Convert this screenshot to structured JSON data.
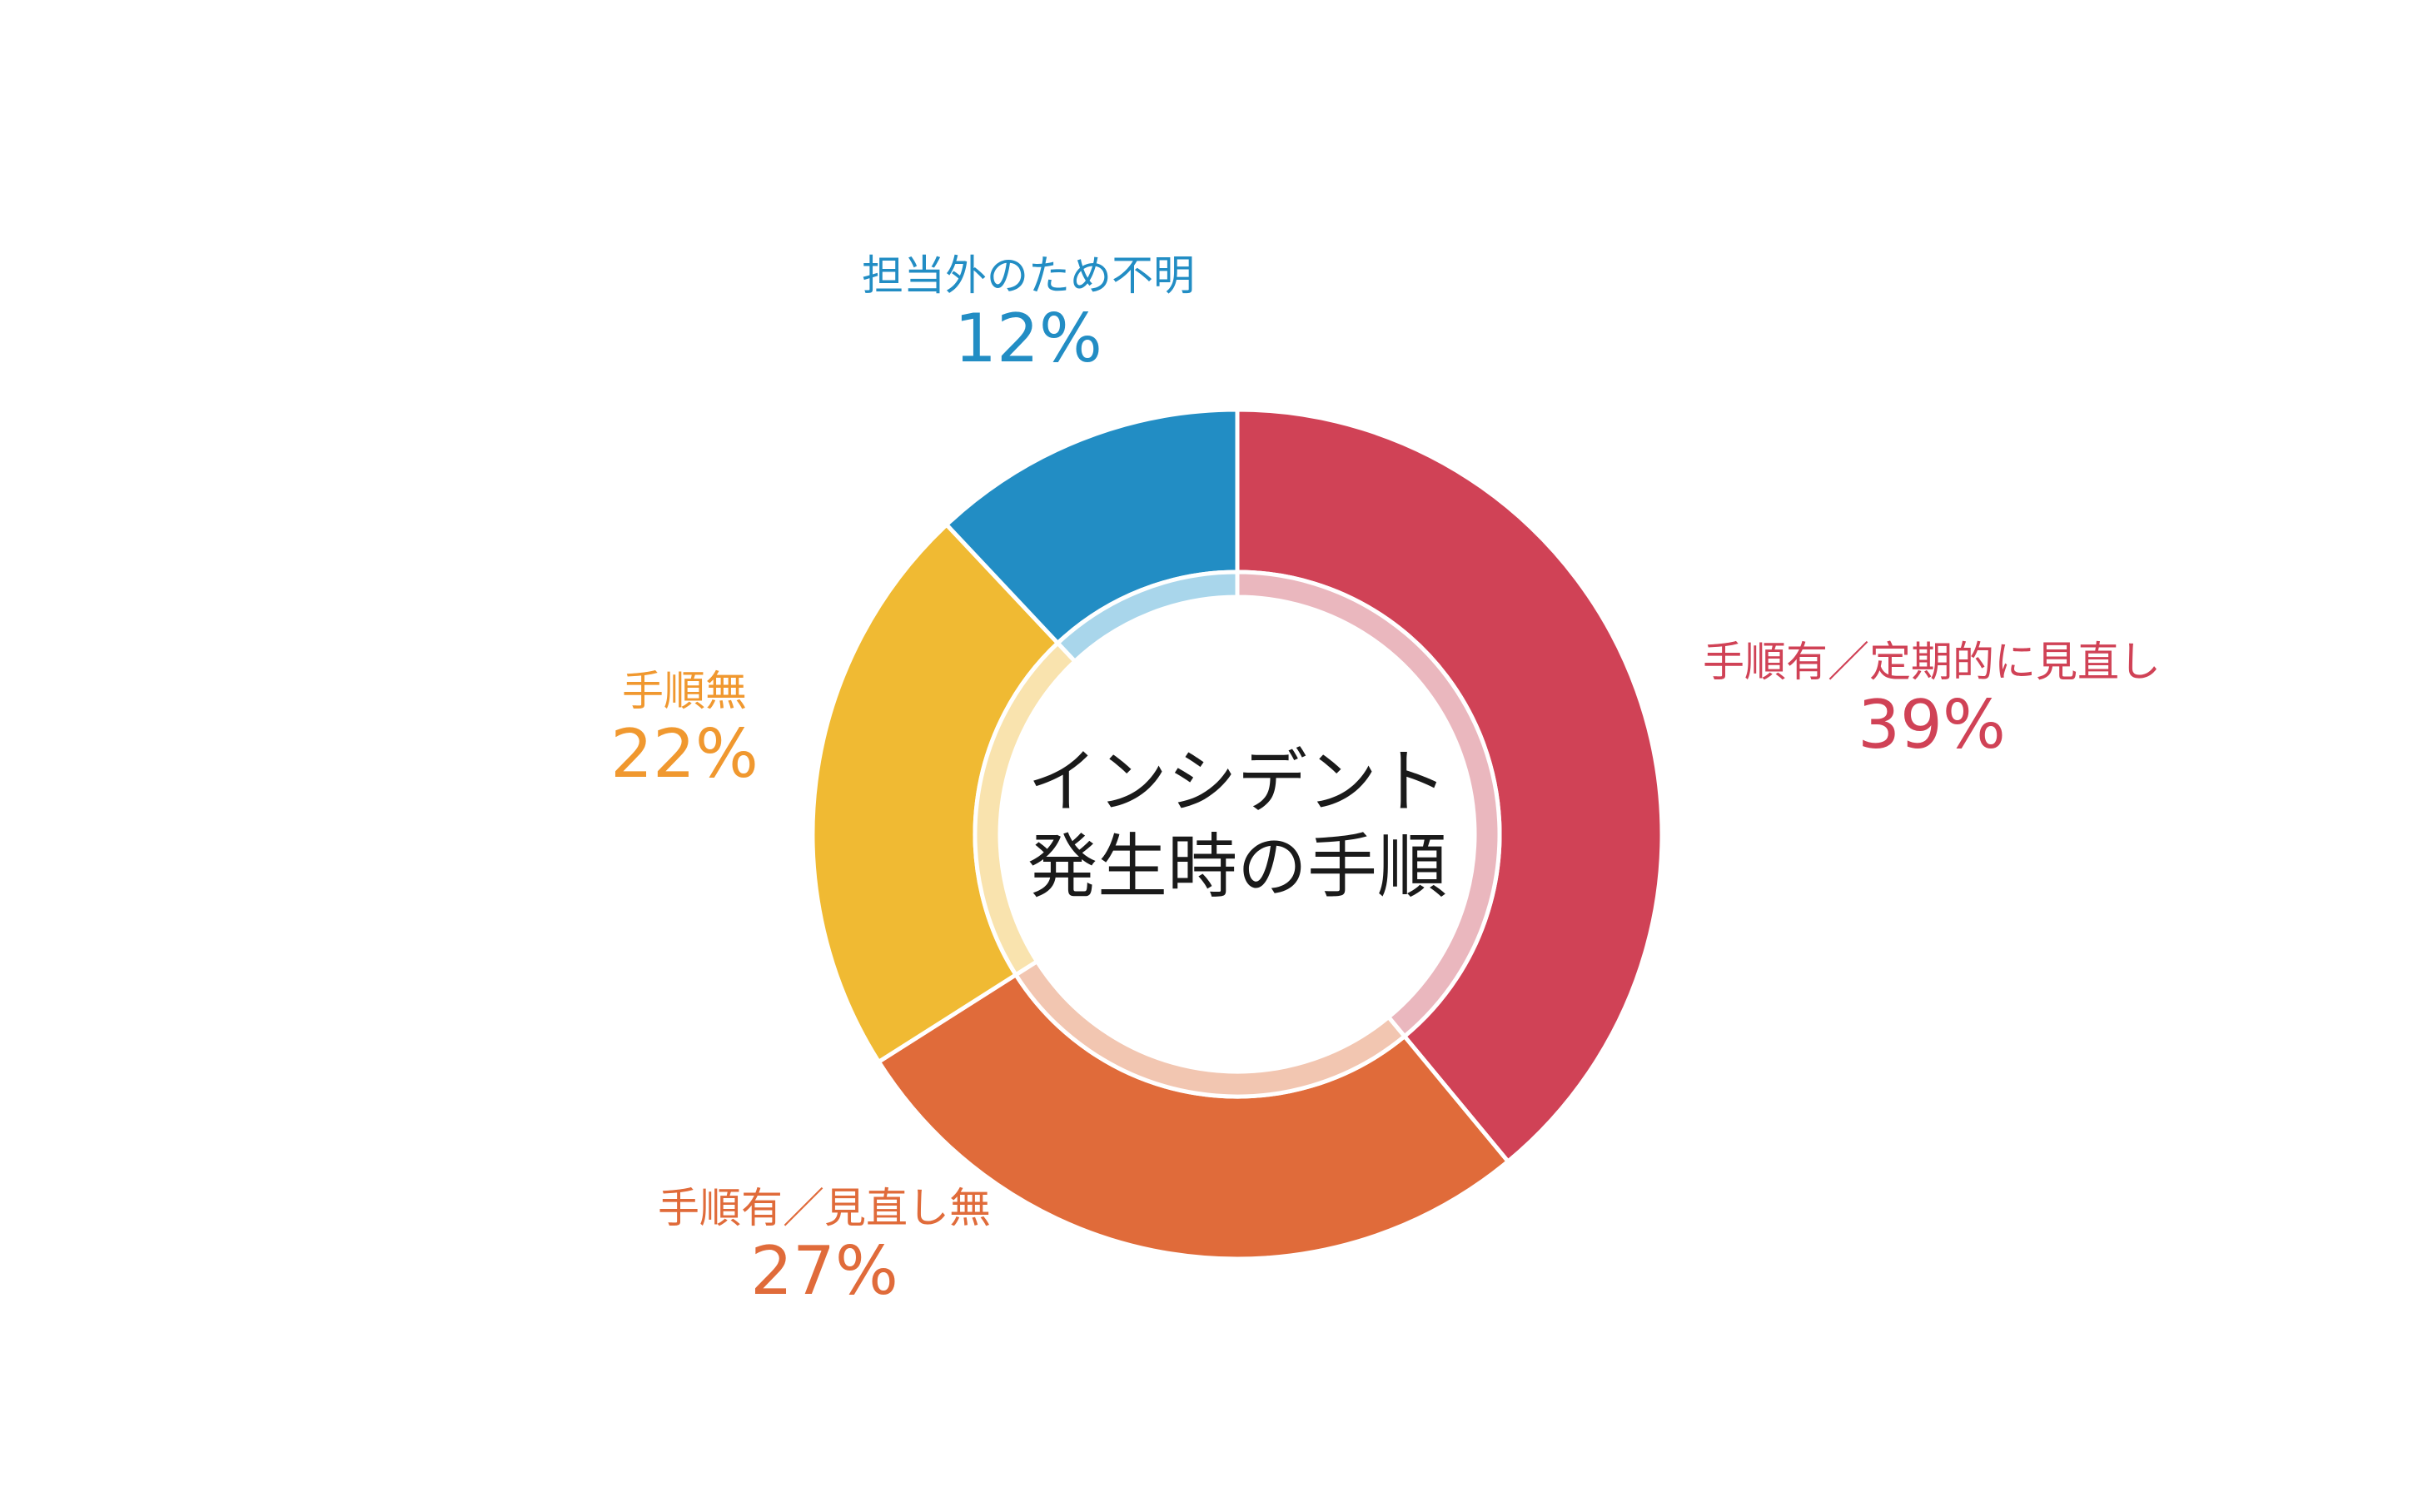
{
  "chart_data": {
    "type": "pie",
    "variant": "donut",
    "center_label": [
      "インシデント",
      "発生時の手順"
    ],
    "slices": [
      {
        "label": "手順有／定期的に見直し",
        "value": 39,
        "value_label": "39%",
        "color": "#D04256",
        "inner_color": "#EAB7BE",
        "label_color": "#D04256"
      },
      {
        "label": "手順有／見直し無",
        "value": 27,
        "value_label": "27%",
        "color": "#E06B3A",
        "inner_color": "#F2C6B1",
        "label_color": "#E06B3A"
      },
      {
        "label": "手順無",
        "value": 22,
        "value_label": "22%",
        "color": "#F0BA33",
        "inner_color": "#F9E3AE",
        "label_color": "#F0982F"
      },
      {
        "label": "担当外のため不明",
        "value": 12,
        "value_label": "12%",
        "color": "#228DC4",
        "inner_color": "#A9D6EB",
        "label_color": "#228DC4"
      }
    ],
    "start": "top",
    "direction": "clockwise",
    "legend": "none"
  }
}
